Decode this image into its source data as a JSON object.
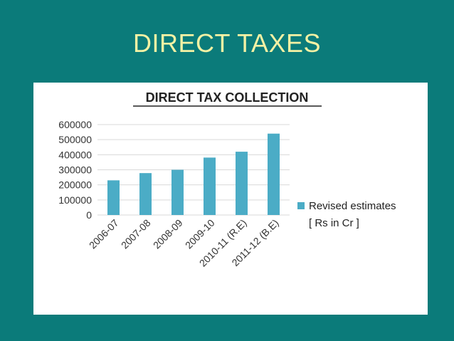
{
  "slide": {
    "title": "DIRECT TAXES"
  },
  "colors": {
    "background": "#0b7b7a",
    "title": "#f3f1a4",
    "bar": "#4bacc6"
  },
  "chart_data": {
    "type": "bar",
    "title": "DIRECT TAX COLLECTION",
    "categories": [
      "2006-07",
      "2007-08",
      "2008-09",
      "2009-10",
      "2010-11 (R.E)",
      "2011-12 (B.E)"
    ],
    "series": [
      {
        "name": "Revised estimates [ Rs in Cr ]",
        "legend_lines": [
          "Revised estimates",
          "[ Rs in Cr ]"
        ],
        "values": [
          230000,
          278000,
          300000,
          381000,
          420000,
          540000
        ]
      }
    ],
    "yticks": [
      0,
      100000,
      200000,
      300000,
      400000,
      500000,
      600000
    ],
    "ylim": [
      0,
      600000
    ],
    "grid": true,
    "legend_position": "right"
  }
}
